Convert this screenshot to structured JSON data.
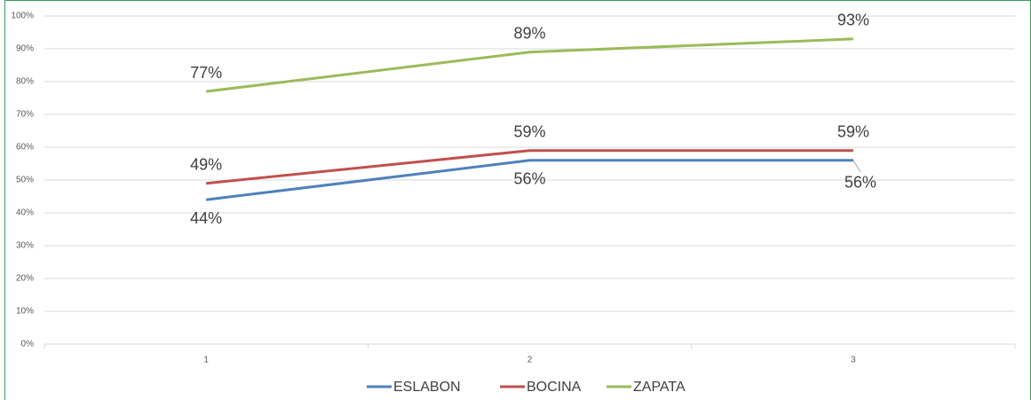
{
  "chart_data": {
    "type": "line",
    "categories": [
      "1",
      "2",
      "3"
    ],
    "series": [
      {
        "name": "ESLABON",
        "color": "#4f81bd",
        "values": [
          44,
          56,
          56
        ],
        "value_labels": [
          "44%",
          "56%",
          "56%"
        ]
      },
      {
        "name": "BOCINA",
        "color": "#c0504d",
        "values": [
          49,
          59,
          59
        ],
        "value_labels": [
          "49%",
          "59%",
          "59%"
        ]
      },
      {
        "name": "ZAPATA",
        "color": "#9bbb59",
        "values": [
          77,
          89,
          93
        ],
        "value_labels": [
          "77%",
          "89%",
          "93%"
        ]
      }
    ],
    "ylim": [
      0,
      100
    ],
    "yticks": [
      {
        "value": 0,
        "label": "0%"
      },
      {
        "value": 10,
        "label": "10%"
      },
      {
        "value": 20,
        "label": "20%"
      },
      {
        "value": 30,
        "label": "30%"
      },
      {
        "value": 40,
        "label": "40%"
      },
      {
        "value": 50,
        "label": "50%"
      },
      {
        "value": 60,
        "label": "60%"
      },
      {
        "value": 70,
        "label": "70%"
      },
      {
        "value": 80,
        "label": "80%"
      },
      {
        "value": 90,
        "label": "90%"
      },
      {
        "value": 100,
        "label": "100%"
      }
    ],
    "grid": true,
    "legend": "bottom"
  }
}
